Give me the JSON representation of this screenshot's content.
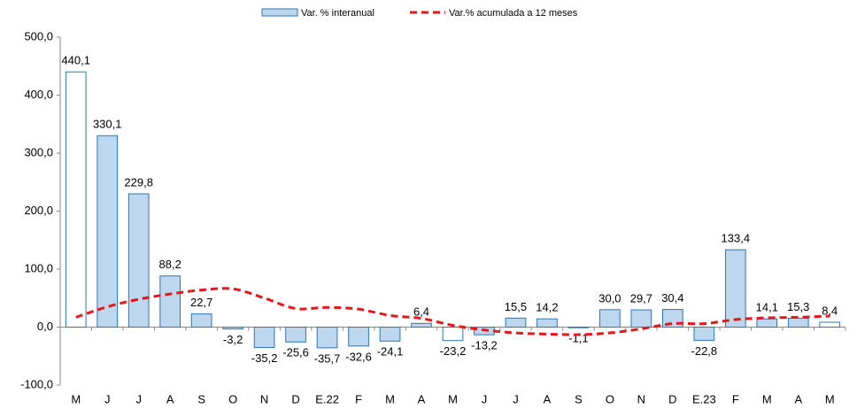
{
  "chart_data": {
    "type": "bar-line",
    "categories": [
      "M",
      "J",
      "J",
      "A",
      "S",
      "O",
      "N",
      "D",
      "E.22",
      "F",
      "M",
      "A",
      "M",
      "J",
      "J",
      "A",
      "S",
      "O",
      "N",
      "D",
      "E.23",
      "F",
      "M",
      "A",
      "M"
    ],
    "series": [
      {
        "name": "Var. % interanual",
        "type": "bar",
        "color": "#bdd7ee",
        "edge_color": "#2e75b6",
        "colors": [
          "#ffffff",
          "#bdd7ee",
          "#bdd7ee",
          "#bdd7ee",
          "#bdd7ee",
          "#bdd7ee",
          "#bdd7ee",
          "#bdd7ee",
          "#bdd7ee",
          "#bdd7ee",
          "#bdd7ee",
          "#bdd7ee",
          "#ffffff",
          "#bdd7ee",
          "#bdd7ee",
          "#bdd7ee",
          "#ffffff",
          "#bdd7ee",
          "#bdd7ee",
          "#bdd7ee",
          "#bdd7ee",
          "#bdd7ee",
          "#bdd7ee",
          "#bdd7ee",
          "#ffffff"
        ],
        "values": [
          440.1,
          330.1,
          229.8,
          88.2,
          22.7,
          -3.2,
          -35.2,
          -25.6,
          -35.7,
          -32.6,
          -24.1,
          6.4,
          -23.2,
          -13.2,
          15.5,
          14.2,
          -1.1,
          30.0,
          29.7,
          30.4,
          -22.8,
          133.4,
          14.1,
          15.3,
          8.4
        ],
        "value_labels": [
          "440,1",
          "330,1",
          "229,8",
          "88,2",
          "22,7",
          "-3,2",
          "-35,2",
          "-25,6",
          "-35,7",
          "-32,6",
          "-24,1",
          "6,4",
          "-23,2",
          "-13,2",
          "15,5",
          "14,2",
          "-1,1",
          "30,0",
          "29,7",
          "30,4",
          "-22,8",
          "133,4",
          "14,1",
          "15,3",
          "8,4"
        ]
      },
      {
        "name": "Var.% acumulada a 12 meses",
        "type": "line",
        "color": "#e8151b",
        "dashed": true,
        "values": [
          17,
          35,
          48,
          57,
          64,
          66,
          50,
          32,
          34,
          31,
          20,
          15,
          3,
          -5,
          -10,
          -12,
          -13,
          -10,
          -3,
          6,
          6,
          13,
          16,
          17,
          19
        ]
      }
    ],
    "ylim": [
      -100,
      500
    ],
    "yticks": [
      {
        "value": -100,
        "label": "-100,0"
      },
      {
        "value": 0,
        "label": "0,0"
      },
      {
        "value": 100,
        "label": "100,0"
      },
      {
        "value": 200,
        "label": "200,0"
      },
      {
        "value": 300,
        "label": "300,0"
      },
      {
        "value": 400,
        "label": "400,0"
      },
      {
        "value": 500,
        "label": "500,0"
      }
    ],
    "legend": "top"
  }
}
